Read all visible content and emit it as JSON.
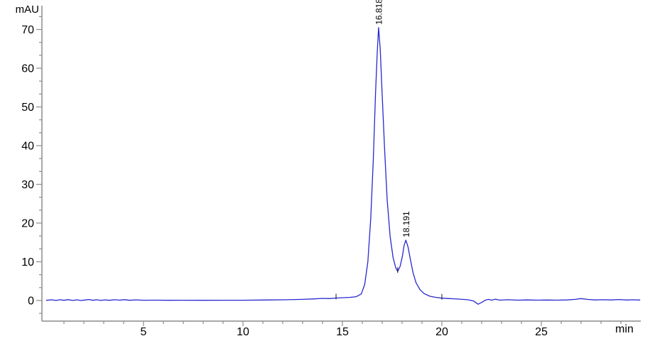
{
  "chart_data": {
    "type": "line",
    "title": "",
    "ylabel": "mAU",
    "xlabel": "min",
    "grid": false,
    "legend": false,
    "axis_color": "#8c8c8c",
    "label_color": "#000000",
    "trace_color": "#2828d0",
    "x_range": [
      0,
      30
    ],
    "y_range": [
      -5.3,
      76.1
    ],
    "x_ticks_major": [
      5,
      10,
      15,
      20,
      25
    ],
    "x_tick_minor_step": 1,
    "y_ticks_major": [
      0,
      10,
      20,
      30,
      40,
      50,
      60,
      70
    ],
    "y_tick_minor_divisions": 3,
    "peaks": [
      {
        "label": "16.818",
        "rt": 16.818,
        "apex_mau": 70.5
      },
      {
        "label": "18.191",
        "rt": 18.191,
        "apex_mau": 15.6
      }
    ],
    "integration_marks": [
      {
        "t": 14.68,
        "v": 0.65
      },
      {
        "t": 17.78,
        "v": 7.5
      },
      {
        "t": 20.0,
        "v": 0.6
      }
    ],
    "series": [
      {
        "name": "detector-signal",
        "color": "#2828d0",
        "points": [
          [
            0.12,
            0.05
          ],
          [
            0.4,
            0.18
          ],
          [
            0.6,
            0.0
          ],
          [
            0.8,
            0.2
          ],
          [
            1.0,
            0.06
          ],
          [
            1.2,
            0.22
          ],
          [
            1.45,
            0.02
          ],
          [
            1.65,
            0.18
          ],
          [
            1.85,
            0.0
          ],
          [
            2.05,
            0.12
          ],
          [
            2.25,
            0.26
          ],
          [
            2.45,
            0.06
          ],
          [
            2.65,
            0.2
          ],
          [
            2.85,
            0.02
          ],
          [
            3.05,
            0.16
          ],
          [
            3.3,
            0.06
          ],
          [
            3.55,
            0.2
          ],
          [
            3.8,
            0.1
          ],
          [
            4.05,
            0.22
          ],
          [
            4.3,
            0.06
          ],
          [
            4.6,
            0.16
          ],
          [
            5.0,
            0.08
          ],
          [
            5.6,
            0.1
          ],
          [
            6.3,
            0.06
          ],
          [
            7.0,
            0.08
          ],
          [
            8.0,
            0.06
          ],
          [
            9.0,
            0.08
          ],
          [
            10.0,
            0.08
          ],
          [
            11.0,
            0.12
          ],
          [
            12.0,
            0.18
          ],
          [
            13.0,
            0.3
          ],
          [
            13.6,
            0.42
          ],
          [
            14.0,
            0.55
          ],
          [
            14.35,
            0.5
          ],
          [
            14.68,
            0.65
          ],
          [
            15.0,
            0.72
          ],
          [
            15.4,
            0.82
          ],
          [
            15.7,
            1.0
          ],
          [
            15.95,
            1.7
          ],
          [
            16.12,
            4.2
          ],
          [
            16.28,
            10.0
          ],
          [
            16.42,
            21.0
          ],
          [
            16.55,
            36.0
          ],
          [
            16.66,
            53.0
          ],
          [
            16.75,
            64.0
          ],
          [
            16.818,
            70.5
          ],
          [
            16.9,
            65.0
          ],
          [
            17.0,
            53.0
          ],
          [
            17.12,
            39.0
          ],
          [
            17.25,
            26.0
          ],
          [
            17.4,
            16.5
          ],
          [
            17.55,
            11.0
          ],
          [
            17.68,
            8.5
          ],
          [
            17.78,
            7.5
          ],
          [
            17.9,
            8.8
          ],
          [
            18.02,
            11.6
          ],
          [
            18.1,
            14.2
          ],
          [
            18.191,
            15.6
          ],
          [
            18.3,
            13.8
          ],
          [
            18.42,
            10.5
          ],
          [
            18.55,
            7.2
          ],
          [
            18.7,
            4.6
          ],
          [
            18.9,
            2.8
          ],
          [
            19.1,
            1.8
          ],
          [
            19.4,
            1.1
          ],
          [
            19.7,
            0.8
          ],
          [
            20.0,
            0.6
          ],
          [
            20.4,
            0.5
          ],
          [
            20.9,
            0.35
          ],
          [
            21.3,
            0.2
          ],
          [
            21.6,
            -0.15
          ],
          [
            21.82,
            -0.95
          ],
          [
            22.0,
            -0.5
          ],
          [
            22.2,
            0.12
          ],
          [
            22.35,
            0.3
          ],
          [
            22.5,
            0.1
          ],
          [
            22.7,
            0.35
          ],
          [
            22.9,
            0.1
          ],
          [
            23.3,
            0.2
          ],
          [
            23.8,
            0.1
          ],
          [
            24.3,
            0.15
          ],
          [
            24.8,
            0.1
          ],
          [
            25.3,
            0.12
          ],
          [
            25.8,
            0.1
          ],
          [
            26.3,
            0.15
          ],
          [
            26.7,
            0.3
          ],
          [
            27.0,
            0.5
          ],
          [
            27.3,
            0.3
          ],
          [
            27.7,
            0.15
          ],
          [
            28.1,
            0.2
          ],
          [
            28.5,
            0.15
          ],
          [
            28.9,
            0.25
          ],
          [
            29.3,
            0.12
          ],
          [
            29.6,
            0.18
          ],
          [
            29.95,
            0.12
          ]
        ]
      }
    ]
  }
}
